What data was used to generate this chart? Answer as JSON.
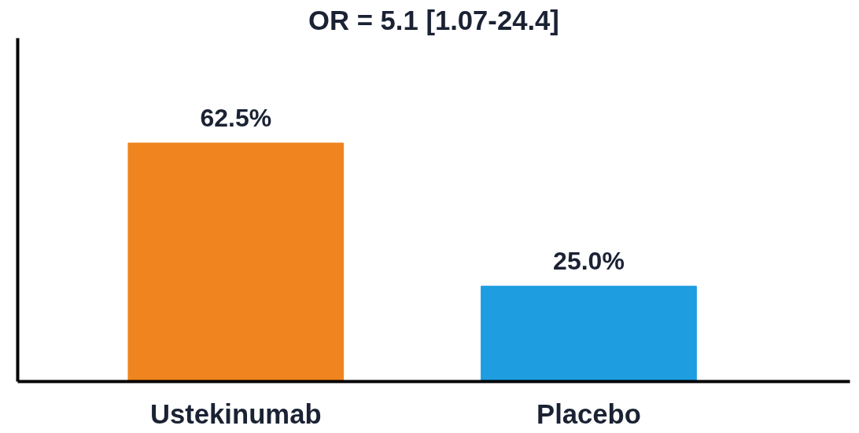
{
  "chart_data": {
    "type": "bar",
    "title": "OR = 5.1 [1.07-24.4]",
    "categories": [
      "Ustekinumab",
      "Placebo"
    ],
    "values": [
      62.5,
      25.0
    ],
    "colors": [
      "#f0841e",
      "#1e9de0"
    ],
    "value_labels": [
      "62.5%",
      "25.0%"
    ],
    "ylim": [
      0,
      90
    ],
    "tick_labels": "x",
    "grid": false
  }
}
